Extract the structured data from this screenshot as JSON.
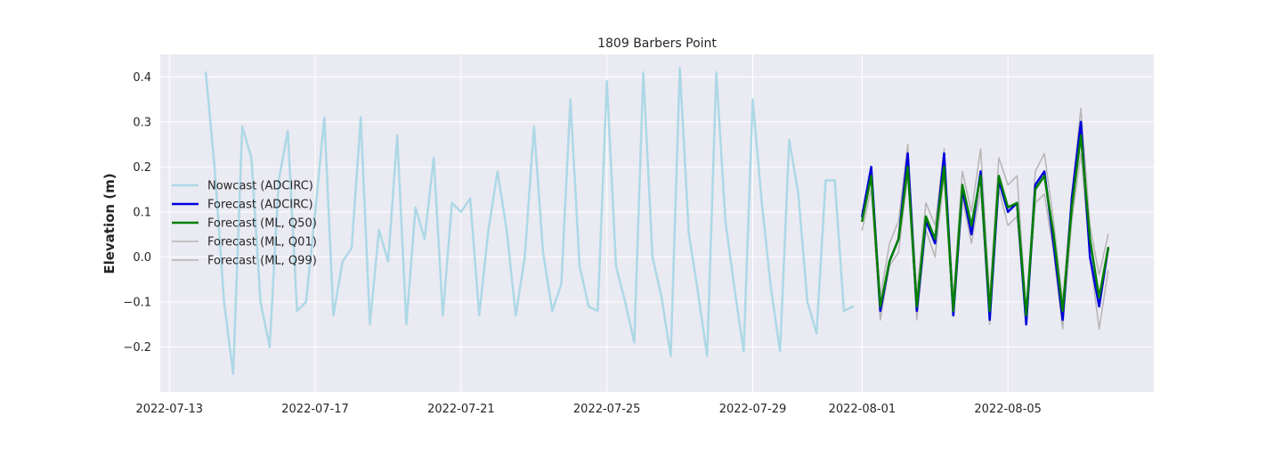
{
  "chart_data": {
    "type": "line",
    "title": "1809 Barbers Point",
    "xlabel": "",
    "ylabel": "Elevation (m)",
    "ylim": [
      -0.3,
      0.45
    ],
    "xlim": [
      "2022-07-12T18:00",
      "2022-08-09T00:00"
    ],
    "grid": true,
    "legend_position": "center-left",
    "x_ticks": [
      "2022-07-13",
      "2022-07-17",
      "2022-07-21",
      "2022-07-25",
      "2022-07-29",
      "2022-08-01",
      "2022-08-05"
    ],
    "y_ticks": [
      0.4,
      0.3,
      0.2,
      0.1,
      0.0,
      -0.1,
      -0.2
    ],
    "y_tick_labels": [
      "0.4",
      "0.3",
      "0.2",
      "0.1",
      "0.0",
      "−0.1",
      "−0.2"
    ],
    "series": [
      {
        "name": "Nowcast (ADCIRC)",
        "color": "#add8e6",
        "width": 2.5,
        "x": [
          "2022-07-14T00:00",
          "2022-07-14T06:00",
          "2022-07-14T12:00",
          "2022-07-14T18:00",
          "2022-07-15T00:00",
          "2022-07-15T06:00",
          "2022-07-15T12:00",
          "2022-07-15T18:00",
          "2022-07-16T00:00",
          "2022-07-16T06:00",
          "2022-07-16T12:00",
          "2022-07-16T18:00",
          "2022-07-17T00:00",
          "2022-07-17T06:00",
          "2022-07-17T12:00",
          "2022-07-17T18:00",
          "2022-07-18T00:00",
          "2022-07-18T06:00",
          "2022-07-18T12:00",
          "2022-07-18T18:00",
          "2022-07-19T00:00",
          "2022-07-19T06:00",
          "2022-07-19T12:00",
          "2022-07-19T18:00",
          "2022-07-20T00:00",
          "2022-07-20T06:00",
          "2022-07-20T12:00",
          "2022-07-20T18:00",
          "2022-07-21T00:00",
          "2022-07-21T06:00",
          "2022-07-21T12:00",
          "2022-07-21T18:00",
          "2022-07-22T00:00",
          "2022-07-22T06:00",
          "2022-07-22T12:00",
          "2022-07-22T18:00",
          "2022-07-23T00:00",
          "2022-07-23T06:00",
          "2022-07-23T12:00",
          "2022-07-23T18:00",
          "2022-07-24T00:00",
          "2022-07-24T06:00",
          "2022-07-24T12:00",
          "2022-07-24T18:00",
          "2022-07-25T00:00",
          "2022-07-25T06:00",
          "2022-07-25T12:00",
          "2022-07-25T18:00",
          "2022-07-26T00:00",
          "2022-07-26T06:00",
          "2022-07-26T12:00",
          "2022-07-26T18:00",
          "2022-07-27T00:00",
          "2022-07-27T06:00",
          "2022-07-27T12:00",
          "2022-07-27T18:00",
          "2022-07-28T00:00",
          "2022-07-28T06:00",
          "2022-07-28T12:00",
          "2022-07-28T18:00",
          "2022-07-29T00:00",
          "2022-07-29T06:00",
          "2022-07-29T12:00",
          "2022-07-29T18:00",
          "2022-07-30T00:00",
          "2022-07-30T06:00",
          "2022-07-30T12:00",
          "2022-07-30T18:00",
          "2022-07-31T00:00",
          "2022-07-31T06:00",
          "2022-07-31T12:00",
          "2022-07-31T18:00"
        ],
        "values": [
          0.41,
          0.19,
          -0.1,
          -0.26,
          0.29,
          0.22,
          -0.1,
          -0.2,
          0.17,
          0.28,
          -0.12,
          -0.1,
          0.1,
          0.31,
          -0.13,
          -0.01,
          0.02,
          0.31,
          -0.15,
          0.06,
          -0.01,
          0.27,
          -0.15,
          0.11,
          0.04,
          0.22,
          -0.13,
          0.12,
          0.1,
          0.13,
          -0.13,
          0.06,
          0.19,
          0.06,
          -0.13,
          0.0,
          0.29,
          0.01,
          -0.12,
          -0.06,
          0.35,
          -0.02,
          -0.11,
          -0.12,
          0.39,
          -0.02,
          -0.1,
          -0.19,
          0.41,
          0.0,
          -0.09,
          -0.22,
          0.42,
          0.05,
          -0.08,
          -0.22,
          0.41,
          0.08,
          -0.07,
          -0.21,
          0.35,
          0.12,
          -0.07,
          -0.21,
          0.26,
          0.14,
          -0.1,
          -0.17,
          0.17,
          0.17,
          -0.12,
          -0.11
        ]
      },
      {
        "name": "Forecast (ADCIRC)",
        "color": "#0000dd",
        "width": 2.5,
        "x": [
          "2022-08-01T00:00",
          "2022-08-01T06:00",
          "2022-08-01T12:00",
          "2022-08-01T18:00",
          "2022-08-02T00:00",
          "2022-08-02T06:00",
          "2022-08-02T12:00",
          "2022-08-02T18:00",
          "2022-08-03T00:00",
          "2022-08-03T06:00",
          "2022-08-03T12:00",
          "2022-08-03T18:00",
          "2022-08-04T00:00",
          "2022-08-04T06:00",
          "2022-08-04T12:00",
          "2022-08-04T18:00",
          "2022-08-05T00:00",
          "2022-08-05T06:00",
          "2022-08-05T12:00",
          "2022-08-05T18:00",
          "2022-08-06T00:00",
          "2022-08-06T06:00",
          "2022-08-06T12:00",
          "2022-08-06T18:00",
          "2022-08-07T00:00",
          "2022-08-07T06:00",
          "2022-08-07T12:00",
          "2022-08-07T18:00"
        ],
        "values": [
          0.09,
          0.2,
          -0.12,
          -0.01,
          0.04,
          0.23,
          -0.12,
          0.08,
          0.03,
          0.23,
          -0.13,
          0.15,
          0.05,
          0.19,
          -0.14,
          0.17,
          0.1,
          0.12,
          -0.15,
          0.16,
          0.19,
          0.03,
          -0.14,
          0.13,
          0.3,
          0.0,
          -0.11,
          0.02
        ]
      },
      {
        "name": "Forecast (ML, Q50)",
        "color": "#008000",
        "width": 2.5,
        "x": [
          "2022-08-01T00:00",
          "2022-08-01T06:00",
          "2022-08-01T12:00",
          "2022-08-01T18:00",
          "2022-08-02T00:00",
          "2022-08-02T06:00",
          "2022-08-02T12:00",
          "2022-08-02T18:00",
          "2022-08-03T00:00",
          "2022-08-03T06:00",
          "2022-08-03T12:00",
          "2022-08-03T18:00",
          "2022-08-04T00:00",
          "2022-08-04T06:00",
          "2022-08-04T12:00",
          "2022-08-04T18:00",
          "2022-08-05T00:00",
          "2022-08-05T06:00",
          "2022-08-05T12:00",
          "2022-08-05T18:00",
          "2022-08-06T00:00",
          "2022-08-06T06:00",
          "2022-08-06T12:00",
          "2022-08-06T18:00",
          "2022-08-07T00:00",
          "2022-08-07T06:00",
          "2022-08-07T12:00",
          "2022-08-07T18:00"
        ],
        "values": [
          0.08,
          0.18,
          -0.11,
          -0.01,
          0.04,
          0.2,
          -0.11,
          0.09,
          0.04,
          0.2,
          -0.12,
          0.16,
          0.07,
          0.18,
          -0.12,
          0.18,
          0.11,
          0.12,
          -0.13,
          0.15,
          0.18,
          0.05,
          -0.12,
          0.11,
          0.27,
          0.04,
          -0.09,
          0.02
        ]
      },
      {
        "name": "Forecast (ML, Q01)",
        "color": "#b5b5b5",
        "width": 1.5,
        "x": [
          "2022-08-01T00:00",
          "2022-08-01T06:00",
          "2022-08-01T12:00",
          "2022-08-01T18:00",
          "2022-08-02T00:00",
          "2022-08-02T06:00",
          "2022-08-02T12:00",
          "2022-08-02T18:00",
          "2022-08-03T00:00",
          "2022-08-03T06:00",
          "2022-08-03T12:00",
          "2022-08-03T18:00",
          "2022-08-04T00:00",
          "2022-08-04T06:00",
          "2022-08-04T12:00",
          "2022-08-04T18:00",
          "2022-08-05T00:00",
          "2022-08-05T06:00",
          "2022-08-05T12:00",
          "2022-08-05T18:00",
          "2022-08-06T00:00",
          "2022-08-06T06:00",
          "2022-08-06T12:00",
          "2022-08-06T18:00",
          "2022-08-07T00:00",
          "2022-08-07T06:00",
          "2022-08-07T12:00",
          "2022-08-07T18:00"
        ],
        "values": [
          0.06,
          0.15,
          -0.14,
          -0.02,
          0.01,
          0.18,
          -0.14,
          0.06,
          0.0,
          0.18,
          -0.13,
          0.13,
          0.03,
          0.15,
          -0.15,
          0.15,
          0.07,
          0.09,
          -0.15,
          0.12,
          0.14,
          0.01,
          -0.16,
          0.08,
          0.23,
          0.0,
          -0.16,
          -0.03
        ]
      },
      {
        "name": "Forecast (ML, Q99)",
        "color": "#b5b5b5",
        "width": 1.5,
        "x": [
          "2022-08-01T00:00",
          "2022-08-01T06:00",
          "2022-08-01T12:00",
          "2022-08-01T18:00",
          "2022-08-02T00:00",
          "2022-08-02T06:00",
          "2022-08-02T12:00",
          "2022-08-02T18:00",
          "2022-08-03T00:00",
          "2022-08-03T06:00",
          "2022-08-03T12:00",
          "2022-08-03T18:00",
          "2022-08-04T00:00",
          "2022-08-04T06:00",
          "2022-08-04T12:00",
          "2022-08-04T18:00",
          "2022-08-05T00:00",
          "2022-08-05T06:00",
          "2022-08-05T12:00",
          "2022-08-05T18:00",
          "2022-08-06T00:00",
          "2022-08-06T06:00",
          "2022-08-06T12:00",
          "2022-08-06T18:00",
          "2022-08-07T00:00",
          "2022-08-07T06:00",
          "2022-08-07T12:00",
          "2022-08-07T18:00"
        ],
        "values": [
          0.1,
          0.2,
          -0.09,
          0.03,
          0.08,
          0.25,
          -0.08,
          0.12,
          0.07,
          0.24,
          -0.09,
          0.19,
          0.1,
          0.24,
          -0.09,
          0.22,
          0.16,
          0.18,
          -0.12,
          0.19,
          0.23,
          0.08,
          -0.1,
          0.14,
          0.33,
          0.07,
          -0.04,
          0.05
        ]
      }
    ]
  }
}
